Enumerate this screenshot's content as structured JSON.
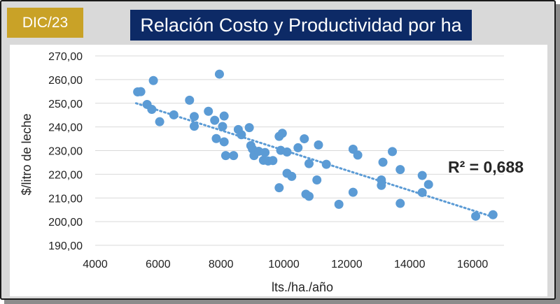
{
  "badge": {
    "label": "DIC/23",
    "color": "#c9a227"
  },
  "title": {
    "text": "Relación Costo y Productividad por ha",
    "bg": "#0d2a66"
  },
  "chart_data": {
    "type": "scatter",
    "title": "Relación Costo y Productividad por ha",
    "xlabel": "lts./ha./año",
    "ylabel": "$/litro de leche",
    "xlim": [
      4000,
      17000
    ],
    "ylim": [
      190,
      270
    ],
    "x_ticks": [
      "4000",
      "6000",
      "8000",
      "10000",
      "12000",
      "14000",
      "16000"
    ],
    "y_ticks": [
      "190,00",
      "200,00",
      "210,00",
      "220,00",
      "230,00",
      "240,00",
      "250,00",
      "260,00",
      "270,00"
    ],
    "grid": "horizontal",
    "point_color": "#5b9bd5",
    "trendline": {
      "type": "linear",
      "style": "dotted",
      "from": [
        5300,
        250.0
      ],
      "to": [
        16700,
        201.8
      ]
    },
    "r2_label": "R² = 0,688",
    "points": [
      [
        5350,
        254.8
      ],
      [
        5450,
        254.9
      ],
      [
        5650,
        249.5
      ],
      [
        5850,
        259.6
      ],
      [
        5800,
        247.4
      ],
      [
        6050,
        242.2
      ],
      [
        6500,
        245.1
      ],
      [
        7000,
        251.3
      ],
      [
        7150,
        244.4
      ],
      [
        7150,
        240.3
      ],
      [
        7600,
        246.6
      ],
      [
        7800,
        242.8
      ],
      [
        7850,
        235.1
      ],
      [
        7950,
        262.3
      ],
      [
        8050,
        240.2
      ],
      [
        8100,
        244.6
      ],
      [
        8100,
        233.7
      ],
      [
        8150,
        227.9
      ],
      [
        8400,
        227.9
      ],
      [
        8550,
        238.9
      ],
      [
        8650,
        236.7
      ],
      [
        8900,
        239.7
      ],
      [
        8950,
        232.1
      ],
      [
        9000,
        230.7
      ],
      [
        9050,
        227.9
      ],
      [
        9200,
        229.7
      ],
      [
        9350,
        225.9
      ],
      [
        9400,
        229.2
      ],
      [
        9500,
        225.6
      ],
      [
        9650,
        225.8
      ],
      [
        9850,
        236.0
      ],
      [
        9900,
        230.1
      ],
      [
        9950,
        237.3
      ],
      [
        9850,
        214.3
      ],
      [
        10100,
        229.4
      ],
      [
        10100,
        220.4
      ],
      [
        10250,
        219.1
      ],
      [
        10450,
        231.2
      ],
      [
        10650,
        235.0
      ],
      [
        10700,
        211.6
      ],
      [
        10800,
        210.7
      ],
      [
        10800,
        224.5
      ],
      [
        11050,
        217.6
      ],
      [
        11100,
        232.4
      ],
      [
        11350,
        224.2
      ],
      [
        11750,
        207.3
      ],
      [
        12200,
        230.6
      ],
      [
        12200,
        212.4
      ],
      [
        12350,
        228.1
      ],
      [
        13100,
        217.6
      ],
      [
        13100,
        215.3
      ],
      [
        13150,
        225.1
      ],
      [
        13450,
        229.6
      ],
      [
        13700,
        222.0
      ],
      [
        13700,
        207.7
      ],
      [
        14400,
        219.5
      ],
      [
        14400,
        212.3
      ],
      [
        14600,
        215.7
      ],
      [
        16100,
        202.3
      ],
      [
        16650,
        202.9
      ]
    ]
  }
}
